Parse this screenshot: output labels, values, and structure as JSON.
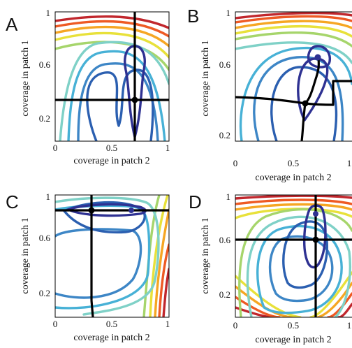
{
  "chart_data": [
    {
      "panel": "A",
      "type": "contour",
      "xlabel": "coverage in patch 2",
      "ylabel": "coverage in patch 1",
      "xlim": [
        0,
        1
      ],
      "ylim": [
        0.1,
        1
      ],
      "x_ticks": [
        "0",
        "0.5",
        "1"
      ],
      "y_ticks": [
        "0.2",
        "0.6",
        "1"
      ],
      "optimum": {
        "x": 0.7,
        "y": 0.35
      },
      "lines": {
        "vertical_x": 0.7,
        "horizontal_y": 0.35
      }
    },
    {
      "panel": "B",
      "type": "contour",
      "xlabel": "coverage in patch 2",
      "ylabel": "coverage in patch 1",
      "xlim": [
        0,
        1
      ],
      "ylim": [
        0.1,
        1
      ],
      "x_ticks": [
        "0",
        "0.5",
        "1"
      ],
      "y_ticks": [
        "0.2",
        "0.6",
        "1"
      ],
      "optimum": {
        "x": 0.72,
        "y": 0.66
      },
      "intersection": {
        "x": 0.62,
        "y": 0.31
      }
    },
    {
      "panel": "C",
      "type": "contour",
      "xlabel": "coverage in patch 2",
      "ylabel": "coverage in patch 1",
      "xlim": [
        0,
        1
      ],
      "ylim": [
        0.1,
        1
      ],
      "x_ticks": [
        "0",
        "0.5",
        "1"
      ],
      "y_ticks": [
        "0.2",
        "0.6",
        "1"
      ],
      "optimum": {
        "x": 0.68,
        "y": 0.71
      },
      "intersection": {
        "x": 0.33,
        "y": 0.71
      }
    },
    {
      "panel": "D",
      "type": "contour",
      "xlabel": "coverage in patch 2",
      "ylabel": "coverage in patch 1",
      "xlim": [
        0,
        1
      ],
      "ylim": [
        0.1,
        1
      ],
      "x_ticks": [
        "0",
        "0.5",
        "1"
      ],
      "y_ticks": [
        "0.2",
        "0.6",
        "1"
      ],
      "optimum": {
        "x": 0.7,
        "y": 0.8
      },
      "intersection": {
        "x": 0.7,
        "y": 0.6
      }
    }
  ],
  "colors": {
    "level1": "#2e3192",
    "level2": "#2b5fb0",
    "level3": "#3d86c6",
    "level4": "#47b1d6",
    "level5": "#7fd1c7",
    "level6": "#a6d56b",
    "level7": "#e8e13a",
    "level8": "#f6a623",
    "level9": "#ee5a24",
    "level10": "#c1272d"
  }
}
